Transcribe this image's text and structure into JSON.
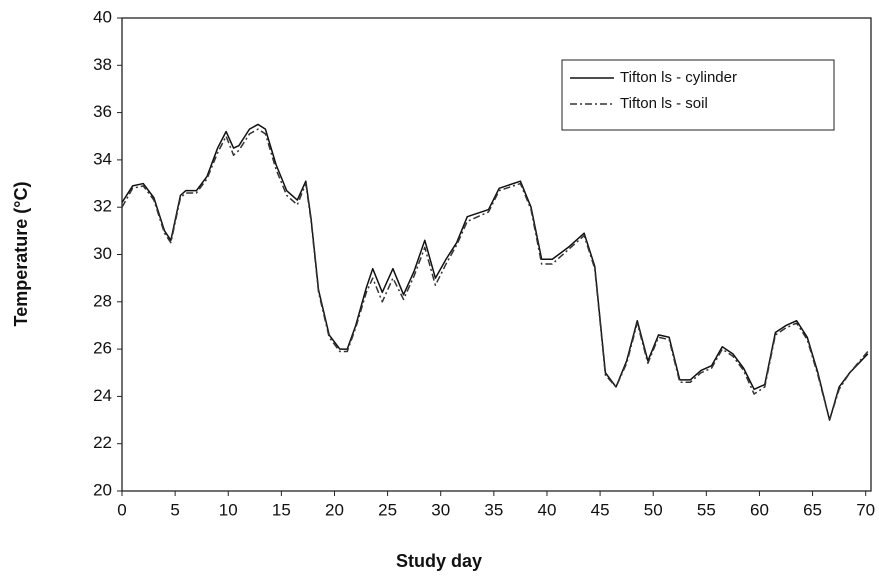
{
  "chart_data": {
    "type": "line",
    "x_label": "Study day",
    "y_label": "Temperature (°C)",
    "x": [
      0,
      1,
      2,
      3,
      4,
      4.6,
      5.5,
      6,
      7,
      8,
      9,
      9.8,
      10.5,
      11,
      12,
      12.8,
      13.5,
      14.5,
      15.5,
      16.5,
      17.3,
      17.8,
      18.5,
      19.5,
      20.5,
      21.2,
      22,
      23,
      23.6,
      24.5,
      25.5,
      26.5,
      27.5,
      28.5,
      29.5,
      30.5,
      31.5,
      32.5,
      34.5,
      35.5,
      37.5,
      38.5,
      39.5,
      40.5,
      42,
      43.5,
      44.5,
      45.5,
      46.5,
      47.5,
      48.5,
      49.5,
      50.5,
      51.5,
      52.5,
      53.5,
      54.5,
      55.5,
      56.5,
      57.5,
      58.5,
      59.5,
      60.5,
      61.5,
      62.5,
      63.5,
      64.5,
      65.5,
      66.6,
      67.5,
      68.5,
      70.2
    ],
    "series": [
      {
        "name": "Tifton ls - cylinder",
        "color": "#111111",
        "style": "solid",
        "values": [
          32.2,
          32.9,
          33.0,
          32.4,
          31.0,
          30.6,
          32.5,
          32.7,
          32.7,
          33.3,
          34.5,
          35.2,
          34.5,
          34.6,
          35.3,
          35.5,
          35.3,
          33.8,
          32.7,
          32.3,
          33.1,
          31.5,
          28.5,
          26.6,
          26.0,
          26.0,
          27.0,
          28.6,
          29.4,
          28.4,
          29.4,
          28.3,
          29.3,
          30.6,
          29.0,
          29.8,
          30.5,
          31.6,
          31.9,
          32.8,
          33.1,
          32.0,
          29.8,
          29.8,
          30.3,
          30.9,
          29.5,
          25.0,
          24.4,
          25.5,
          27.2,
          25.5,
          26.6,
          26.5,
          24.7,
          24.7,
          25.1,
          25.3,
          26.1,
          25.8,
          25.2,
          24.3,
          24.5,
          26.7,
          27.0,
          27.2,
          26.5,
          25.0,
          23.0,
          24.4,
          25.0,
          25.8
        ]
      },
      {
        "name": "Tifton ls - soil",
        "color": "#333333",
        "style": "dashdot",
        "values": [
          32.0,
          32.8,
          32.9,
          32.3,
          30.9,
          30.5,
          32.4,
          32.6,
          32.6,
          33.2,
          34.3,
          35.0,
          34.2,
          34.4,
          35.1,
          35.3,
          35.1,
          33.6,
          32.5,
          32.1,
          33.0,
          31.4,
          28.4,
          26.5,
          25.9,
          25.9,
          26.9,
          28.4,
          29.0,
          28.0,
          29.0,
          28.1,
          29.1,
          30.3,
          28.7,
          29.6,
          30.4,
          31.4,
          31.8,
          32.7,
          33.0,
          31.9,
          29.6,
          29.6,
          30.2,
          30.8,
          29.4,
          24.9,
          24.4,
          25.4,
          27.1,
          25.4,
          26.5,
          26.4,
          24.6,
          24.6,
          25.0,
          25.2,
          26.0,
          25.7,
          25.1,
          24.1,
          24.4,
          26.6,
          26.9,
          27.1,
          26.4,
          24.9,
          23.0,
          24.3,
          25.0,
          25.9
        ]
      }
    ],
    "xlim": [
      0,
      70.5
    ],
    "ylim": [
      20,
      40
    ],
    "xticks": [
      0,
      5,
      10,
      15,
      20,
      25,
      30,
      35,
      40,
      45,
      50,
      55,
      60,
      65,
      70
    ],
    "yticks": [
      20,
      22,
      24,
      26,
      28,
      30,
      32,
      34,
      36,
      38,
      40
    ],
    "grid": false,
    "legend": "upper right"
  }
}
